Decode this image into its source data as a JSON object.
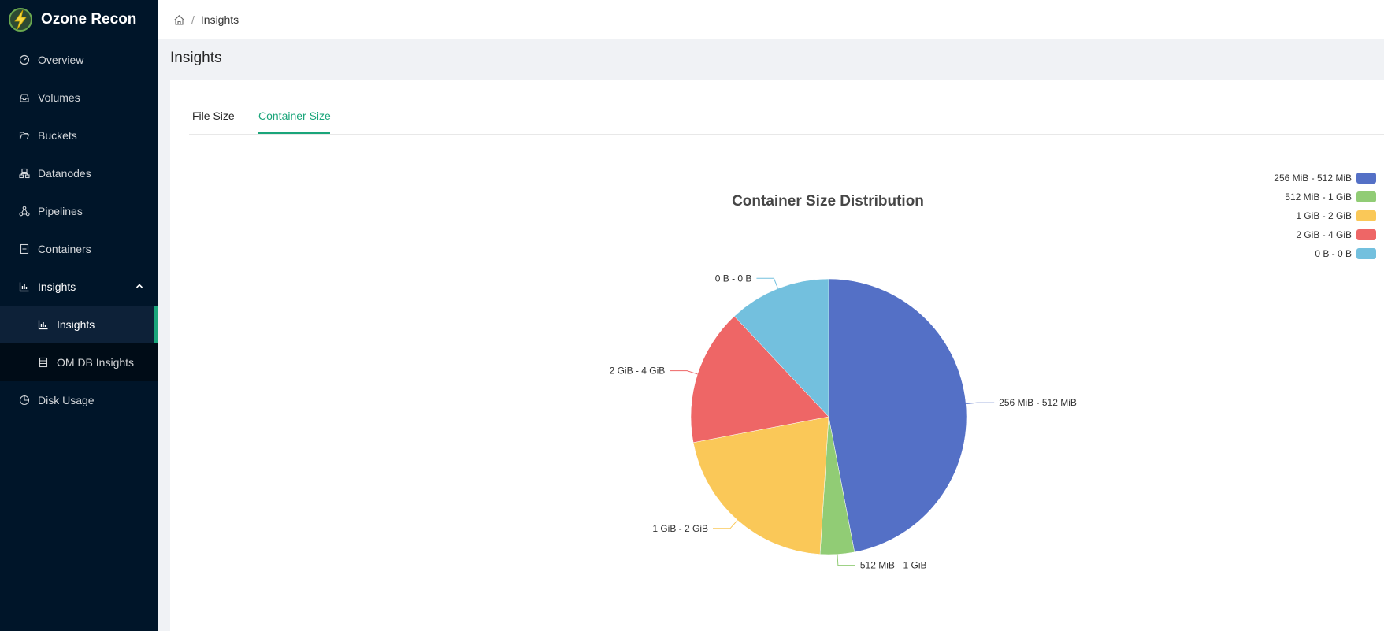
{
  "app": {
    "title": "Ozone Recon"
  },
  "sidebar": {
    "items": [
      {
        "label": "Overview",
        "icon": "dashboard-icon"
      },
      {
        "label": "Volumes",
        "icon": "inbox-icon"
      },
      {
        "label": "Buckets",
        "icon": "folder-open-icon"
      },
      {
        "label": "Datanodes",
        "icon": "cluster-icon"
      },
      {
        "label": "Pipelines",
        "icon": "deployment-unit-icon"
      },
      {
        "label": "Containers",
        "icon": "container-icon"
      },
      {
        "label": "Insights",
        "icon": "bar-chart-icon"
      },
      {
        "label": "Disk Usage",
        "icon": "pie-chart-icon"
      }
    ],
    "submenu": [
      {
        "label": "Insights",
        "icon": "bar-chart-icon",
        "selected": true
      },
      {
        "label": "OM DB Insights",
        "icon": "database-icon",
        "selected": false
      }
    ]
  },
  "breadcrumb": {
    "current": "Insights",
    "separator": "/"
  },
  "page": {
    "title": "Insights"
  },
  "tabs": [
    {
      "label": "File Size",
      "active": false
    },
    {
      "label": "Container Size",
      "active": true
    }
  ],
  "colors": {
    "accent": "#1aa57a",
    "sidebar": "#001529"
  },
  "chart_data": {
    "type": "pie",
    "title": "Container Size Distribution",
    "categories": [
      "256 MiB - 512 MiB",
      "512 MiB - 1 GiB",
      "1 GiB - 2 GiB",
      "2 GiB - 4 GiB",
      "0 B - 0 B"
    ],
    "values": [
      47,
      4,
      21,
      16,
      12
    ],
    "colors": [
      "#5470c6",
      "#91cc75",
      "#fac858",
      "#ee6666",
      "#73c0de"
    ],
    "legend": "top-right"
  }
}
